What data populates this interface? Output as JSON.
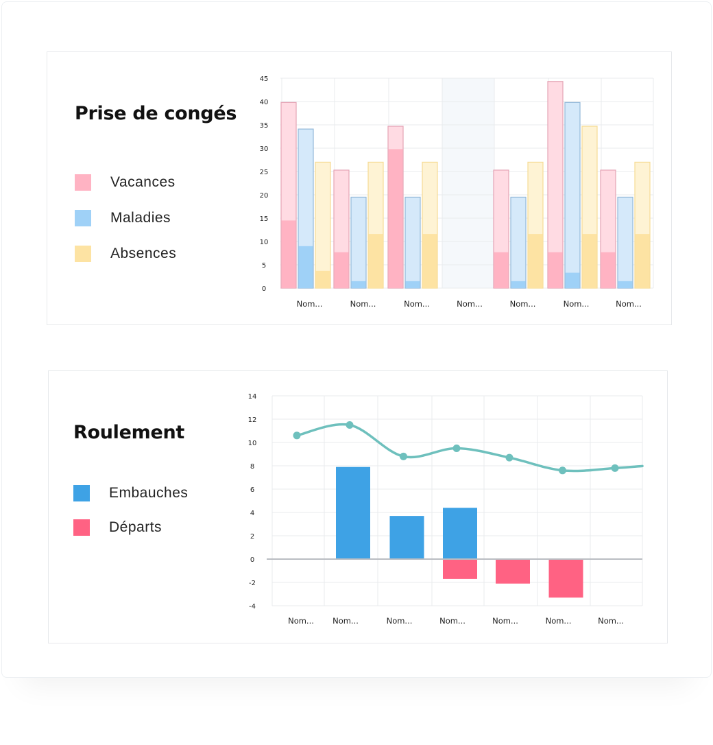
{
  "colors": {
    "vacances": "#ffb3c3",
    "vacances_light": "#ffdbe3",
    "vacances_border": "#e4a3b5",
    "maladies": "#9fd1f7",
    "maladies_light": "#d5e9fa",
    "maladies_border": "#93b8d9",
    "absences": "#fde3a3",
    "absences_light": "#fef3d4",
    "absences_border": "#f6db94",
    "embauches": "#3ea2e5",
    "departs": "#ff6283",
    "line": "#6ec0bd",
    "highlight": "#f5f8fb",
    "grid": "#e9ebee"
  },
  "chart_data": [
    {
      "type": "bar",
      "title": "Prise de congés",
      "categories": [
        "Nom...",
        "Nom...",
        "Nom...",
        "Nom...",
        "Nom...",
        "Nom...",
        "Nom..."
      ],
      "ylim": [
        0,
        45
      ],
      "yticks": [
        0,
        5,
        10,
        15,
        20,
        25,
        30,
        35,
        40,
        45
      ],
      "grid": true,
      "highlighted_category": "Nom... (4)",
      "legend": [
        "Vacances",
        "Maladies",
        "Absences"
      ],
      "series": [
        {
          "name": "Vacances",
          "values": [
            14.5,
            7.7,
            29.8,
            0,
            7.7,
            7.7,
            7.7
          ],
          "totals": [
            39.8,
            25.3,
            34.7,
            0,
            25.3,
            44.3,
            25.3
          ]
        },
        {
          "name": "Maladies",
          "values": [
            9.0,
            1.5,
            1.5,
            0,
            1.5,
            3.3,
            1.5
          ],
          "totals": [
            34.1,
            19.5,
            19.5,
            0,
            19.5,
            39.8,
            19.5
          ]
        },
        {
          "name": "Absences",
          "values": [
            3.7,
            11.6,
            11.6,
            0,
            11.6,
            11.6,
            11.6
          ],
          "totals": [
            27.0,
            27.0,
            27.0,
            0,
            27.0,
            34.7,
            27.0
          ]
        }
      ]
    },
    {
      "type": "bar",
      "title": "Roulement",
      "categories": [
        "Nom...",
        "Nom...",
        "Nom...",
        "Nom...",
        "Nom...",
        "Nom...",
        "Nom..."
      ],
      "ylim": [
        -4,
        14
      ],
      "yticks": [
        -4,
        -2,
        0,
        2,
        4,
        6,
        8,
        10,
        12,
        14
      ],
      "grid": true,
      "legend": [
        "Embauches",
        "Départs"
      ],
      "series": [
        {
          "name": "Embauches",
          "values": [
            0,
            7.9,
            3.7,
            4.4,
            0,
            0,
            0
          ]
        },
        {
          "name": "Départs",
          "values": [
            0,
            0,
            0,
            -1.7,
            -2.1,
            -3.3,
            0
          ]
        },
        {
          "name": "Line",
          "type": "line",
          "values": [
            10.6,
            11.5,
            8.8,
            9.5,
            8.7,
            7.6,
            7.8
          ]
        }
      ]
    }
  ]
}
